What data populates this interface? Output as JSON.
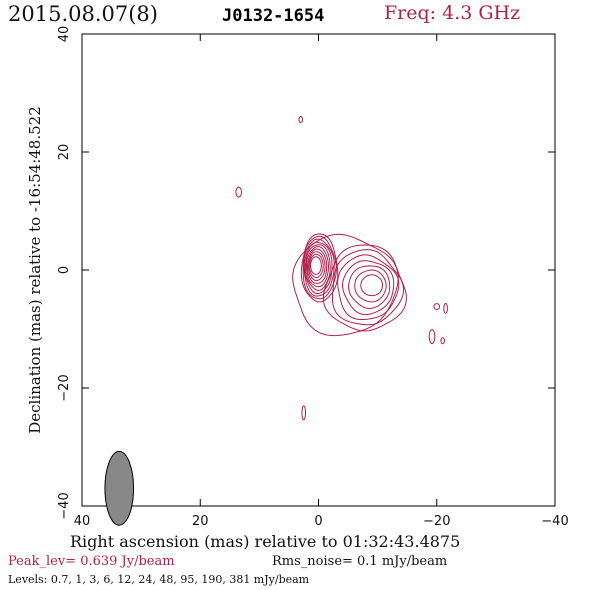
{
  "header": {
    "date": "2015.08.07(8)",
    "source": "J0132-1654",
    "freq": "Freq: 4.3 GHz"
  },
  "colors": {
    "contour": "#b0204a",
    "beam": "#888888",
    "axes": "#000000"
  },
  "chart_data": {
    "type": "contour",
    "xlabel": "Right ascension (mas) relative to 01:32:43.4875",
    "ylabel": "Declination (mas) relative to -16:54:48.522",
    "xlim": [
      40,
      -40
    ],
    "ylim": [
      -40,
      40
    ],
    "xticks": [
      40,
      20,
      0,
      -20,
      -40
    ],
    "yticks": [
      -40,
      -20,
      0,
      20,
      40
    ],
    "core": {
      "x": 0.5,
      "y": 0.8
    },
    "jet_component": {
      "x": -7.5,
      "y": -2.5
    },
    "beam": {
      "x": 33.7,
      "y": -37.0,
      "major_mas": 4.8,
      "minor_mas": 2.2,
      "pa_deg": 0
    },
    "contour_levels_mJy": [
      0.7,
      1,
      3,
      6,
      12,
      24,
      48,
      95,
      190,
      381
    ],
    "isolated_contours": [
      {
        "x": 3.0,
        "y": 25.5
      },
      {
        "x": 13.5,
        "y": 13.2
      },
      {
        "x": 2.5,
        "y": -24.2
      },
      {
        "x": -20.0,
        "y": -6.2
      },
      {
        "x": -21.5,
        "y": -6.5
      },
      {
        "x": -19.2,
        "y": -11.3
      },
      {
        "x": -21.0,
        "y": -12.0
      }
    ]
  },
  "footer": {
    "peak": "Peak_lev=  0.639 Jy/beam",
    "rms": "Rms_noise=  0.1 mJy/beam",
    "levels": "Levels: 0.7,   1,   3,   6,  12,  24,  48,  95, 190, 381 mJy/beam"
  }
}
